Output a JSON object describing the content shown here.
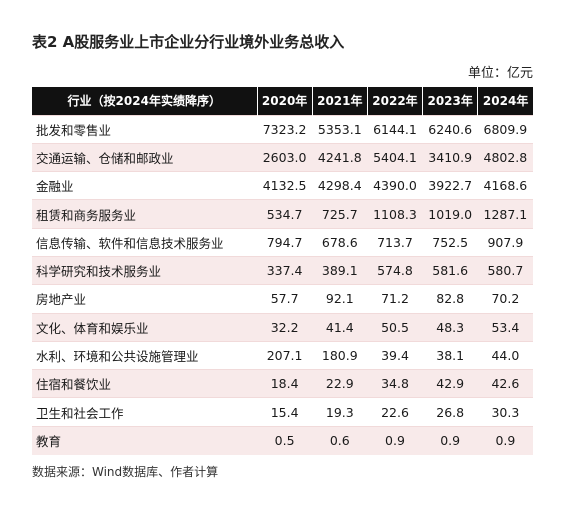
{
  "title": "表2 A股服务业上市企业分行业境外业务总收入",
  "unit": "单位：亿元",
  "table": {
    "headers": [
      "行业（按2024年实绩降序）",
      "2020年",
      "2021年",
      "2022年",
      "2023年",
      "2024年"
    ],
    "rows": [
      [
        "批发和零售业",
        "7323.2",
        "5353.1",
        "6144.1",
        "6240.6",
        "6809.9"
      ],
      [
        "交通运输、仓储和邮政业",
        "2603.0",
        "4241.8",
        "5404.1",
        "3410.9",
        "4802.8"
      ],
      [
        "金融业",
        "4132.5",
        "4298.4",
        "4390.0",
        "3922.7",
        "4168.6"
      ],
      [
        "租赁和商务服务业",
        "534.7",
        "725.7",
        "1108.3",
        "1019.0",
        "1287.1"
      ],
      [
        "信息传输、软件和信息技术服务业",
        "794.7",
        "678.6",
        "713.7",
        "752.5",
        "907.9"
      ],
      [
        "科学研究和技术服务业",
        "337.4",
        "389.1",
        "574.8",
        "581.6",
        "580.7"
      ],
      [
        "房地产业",
        "57.7",
        "92.1",
        "71.2",
        "82.8",
        "70.2"
      ],
      [
        "文化、体育和娱乐业",
        "32.2",
        "41.4",
        "50.5",
        "48.3",
        "53.4"
      ],
      [
        "水利、环境和公共设施管理业",
        "207.1",
        "180.9",
        "39.4",
        "38.1",
        "44.0"
      ],
      [
        "住宿和餐饮业",
        "18.4",
        "22.9",
        "34.8",
        "42.9",
        "42.6"
      ],
      [
        "卫生和社会工作",
        "15.4",
        "19.3",
        "22.6",
        "26.8",
        "30.3"
      ],
      [
        "教育",
        "0.5",
        "0.6",
        "0.9",
        "0.9",
        "0.9"
      ]
    ]
  },
  "source": "数据来源：Wind数据库、作者计算",
  "colors": {
    "header_bg": "#111111",
    "header_text": "#ffffff",
    "stripe_bg": "#f8eaea"
  }
}
